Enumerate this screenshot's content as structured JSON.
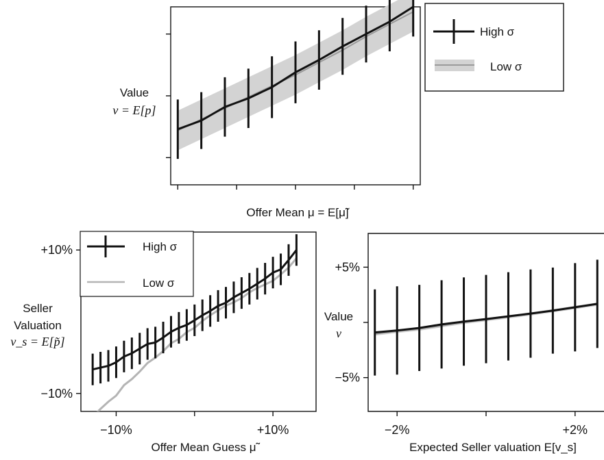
{
  "chart_data": [
    {
      "type": "line",
      "xlabel": "Offer Mean μ = E[μ̃]",
      "ylabel_line1": "Value",
      "ylabel_line2": "v = E[p]",
      "x": [
        0,
        1,
        2,
        3,
        4,
        5,
        6,
        7,
        8,
        9,
        10
      ],
      "xlim": [
        -0.3,
        10.3
      ],
      "ylim": [
        -2.2,
        12.2
      ],
      "xticks": [
        0,
        2.5,
        5,
        7.5,
        10
      ],
      "yticks": [
        0,
        5,
        10
      ],
      "series": [
        {
          "name": "High σ",
          "style": "errorbar",
          "color": "#111111",
          "values": [
            2.3,
            3.0,
            4.1,
            4.8,
            5.7,
            6.9,
            7.9,
            9.0,
            10.0,
            11.0,
            12.2
          ],
          "err": [
            2.4,
            2.3,
            2.4,
            2.4,
            2.5,
            2.5,
            2.4,
            2.3,
            2.3,
            2.4,
            2.4
          ]
        },
        {
          "name": "Low σ",
          "style": "band",
          "color": "#9a9a9a",
          "values": [
            2.2,
            3.1,
            4.0,
            4.9,
            5.8,
            6.7,
            7.7,
            8.7,
            9.8,
            10.8,
            11.8
          ],
          "err": [
            1.6,
            1.6,
            1.6,
            1.6,
            1.6,
            1.6,
            1.6,
            1.6,
            1.6,
            1.6,
            1.6
          ]
        }
      ],
      "legend": {
        "placement": "outside-right"
      },
      "grid": false
    },
    {
      "type": "line",
      "xlabel": "Offer Mean Guess μ̃",
      "ylabel_line1": "Seller",
      "ylabel_line2": "Valuation",
      "ylabel_line3": "v_s = E[p̃]",
      "x": [
        -0.13,
        -0.12,
        -0.11,
        -0.1,
        -0.09,
        -0.08,
        -0.07,
        -0.06,
        -0.05,
        -0.04,
        -0.03,
        -0.02,
        -0.01,
        0.0,
        0.01,
        0.02,
        0.03,
        0.04,
        0.05,
        0.06,
        0.07,
        0.08,
        0.09,
        0.1,
        0.11,
        0.12,
        0.13
      ],
      "xlim": [
        -0.145,
        0.155
      ],
      "ylim": [
        -0.125,
        0.125
      ],
      "xticks": [
        -0.1,
        0.0,
        0.1
      ],
      "xtick_labels": [
        "−10%",
        "",
        "+10%"
      ],
      "yticks": [
        -0.1,
        0.1
      ],
      "ytick_labels": [
        "−10%",
        "+10%"
      ],
      "series": [
        {
          "name": "High σ",
          "style": "errorbar",
          "color": "#111111",
          "values": [
            -0.0665,
            -0.064,
            -0.0615,
            -0.0565,
            -0.0485,
            -0.044,
            -0.0375,
            -0.031,
            -0.029,
            -0.022,
            -0.014,
            -0.0085,
            -0.0045,
            0.002,
            0.009,
            0.015,
            0.022,
            0.0265,
            0.034,
            0.04,
            0.046,
            0.053,
            0.06,
            0.0685,
            0.073,
            0.086,
            0.1
          ],
          "err": [
            0.022,
            0.022,
            0.022,
            0.022,
            0.022,
            0.022,
            0.022,
            0.022,
            0.022,
            0.022,
            0.022,
            0.022,
            0.022,
            0.022,
            0.022,
            0.022,
            0.022,
            0.022,
            0.022,
            0.022,
            0.022,
            0.022,
            0.022,
            0.022,
            0.022,
            0.022,
            0.022
          ]
        },
        {
          "name": "Low σ",
          "style": "line",
          "color": "#b4b4b4",
          "values": [
            -0.1325,
            -0.1215,
            -0.1115,
            -0.103,
            -0.0885,
            -0.08,
            -0.0695,
            -0.0575,
            -0.05,
            -0.041,
            -0.03,
            -0.024,
            -0.0145,
            -0.0085,
            0.001,
            0.009,
            0.016,
            0.0225,
            0.027,
            0.033,
            0.041,
            0.047,
            0.052,
            0.057,
            0.066,
            0.0755,
            0.0885
          ]
        }
      ],
      "legend": {
        "placement": "top-left"
      },
      "grid": false
    },
    {
      "type": "line",
      "xlabel": "Expected Seller valuation E[v_s]",
      "ylabel_line1": "Value",
      "ylabel_line2": "v",
      "x": [
        -0.025,
        -0.02,
        -0.015,
        -0.01,
        -0.005,
        0.0,
        0.005,
        0.01,
        0.015,
        0.02,
        0.025
      ],
      "xlim": [
        -0.0265,
        0.0265
      ],
      "ylim": [
        -0.0806,
        0.0806
      ],
      "xticks": [
        -0.02,
        0.0,
        0.02
      ],
      "xtick_labels": [
        "−2%",
        "",
        "+2%"
      ],
      "yticks": [
        -0.05,
        0.0,
        0.05
      ],
      "ytick_labels": [
        "−5%",
        "",
        "+5%"
      ],
      "series": [
        {
          "name": "High σ",
          "style": "errorbar",
          "color": "#111111",
          "values": [
            -0.0091,
            -0.0073,
            -0.005,
            -0.0018,
            0.0008,
            0.003,
            0.0055,
            0.008,
            0.0107,
            0.0137,
            0.0168
          ],
          "err": [
            0.039,
            0.04,
            0.039,
            0.04,
            0.04,
            0.04,
            0.04,
            0.04,
            0.039,
            0.04,
            0.04
          ]
        },
        {
          "name": "Low σ",
          "style": "band",
          "color": "#9a9a9a",
          "values": [
            -0.0105,
            -0.008,
            -0.006,
            -0.003,
            0.0,
            0.0025,
            0.005,
            0.0077,
            0.0105,
            0.0135,
            0.0165
          ],
          "err": [
            0.0015,
            0.0015,
            0.0015,
            0.0015,
            0.0015,
            0.0015,
            0.0015,
            0.0015,
            0.0015,
            0.0015,
            0.0015
          ]
        }
      ],
      "grid": false
    }
  ],
  "legend_labels": {
    "high": "High σ",
    "low": "Low σ"
  }
}
